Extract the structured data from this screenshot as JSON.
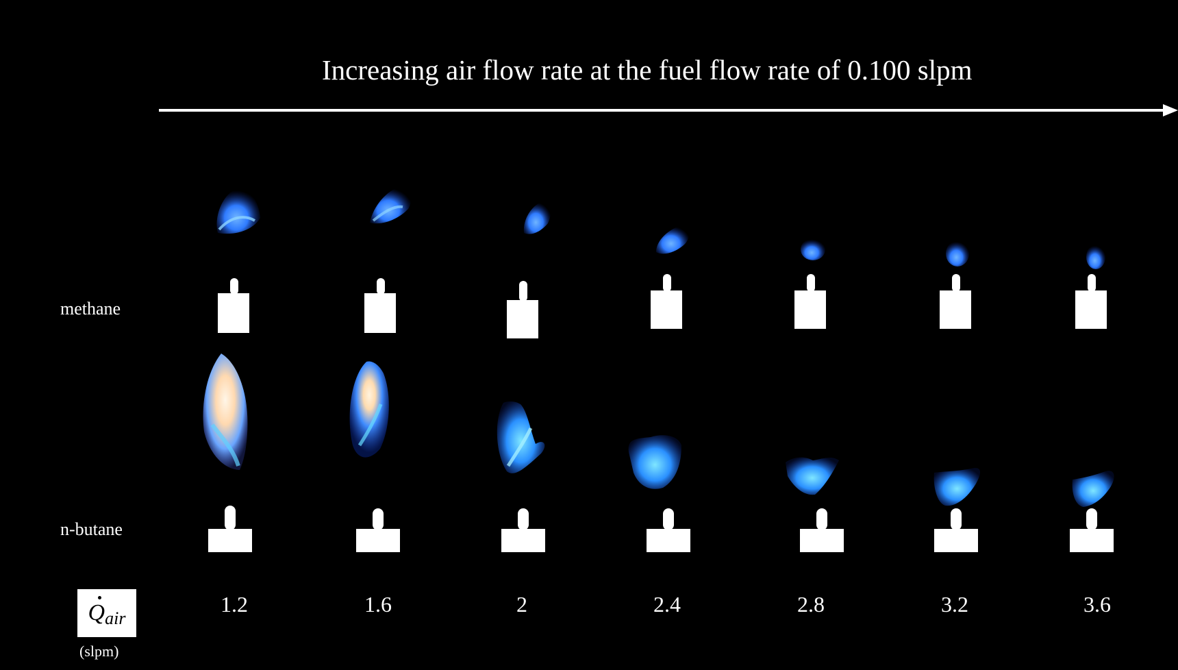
{
  "figure": {
    "title": "Increasing air flow rate at the fuel flow rate of 0.100 slpm",
    "rows": [
      {
        "label": "methane"
      },
      {
        "label": "n-butane"
      }
    ],
    "quantity_symbol": "Q",
    "quantity_subscript": "air",
    "unit": "(slpm)",
    "air_flow_values": [
      "1.2",
      "1.6",
      "2",
      "2.4",
      "2.8",
      "3.2",
      "3.6"
    ]
  },
  "colors": {
    "background": "#000000",
    "text": "#ffffff",
    "flame_blue": "#2f7bff",
    "flame_light_blue": "#63d8ff",
    "flame_luminous": "#ffe6c8"
  },
  "icons": {
    "burner": "burner-nozzle-icon",
    "arrow": "right-arrow-icon"
  }
}
